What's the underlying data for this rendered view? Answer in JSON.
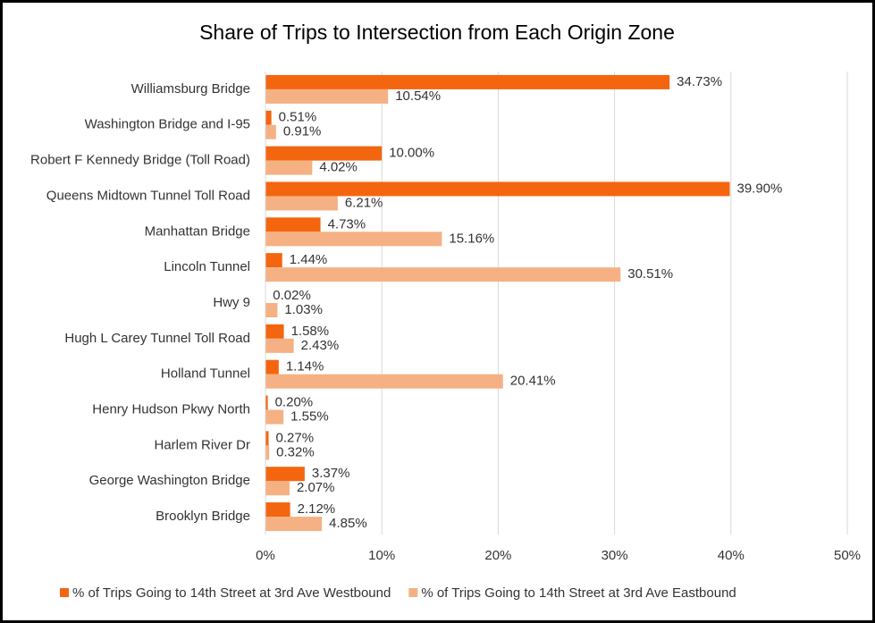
{
  "chart_data": {
    "type": "bar",
    "orientation": "horizontal",
    "title": "Share of Trips to Intersection from Each Origin Zone",
    "categories": [
      "Williamsburg Bridge",
      "Washington Bridge and I-95",
      "Robert F Kennedy Bridge (Toll Road)",
      "Queens Midtown Tunnel Toll Road",
      "Manhattan Bridge",
      "Lincoln Tunnel",
      "Hwy 9",
      "Hugh L Carey Tunnel Toll Road",
      "Holland Tunnel",
      "Henry Hudson Pkwy North",
      "Harlem River Dr",
      "George Washington Bridge",
      "Brooklyn Bridge"
    ],
    "series": [
      {
        "name": "% of Trips Going to 14th Street at 3rd Ave Westbound",
        "color": "#f4650f",
        "values": [
          34.73,
          0.51,
          10.0,
          39.9,
          4.73,
          1.44,
          0.02,
          1.58,
          1.14,
          0.2,
          0.27,
          3.37,
          2.12
        ],
        "value_labels": [
          "34.73%",
          "0.51%",
          "10.00%",
          "39.90%",
          "4.73%",
          "1.44%",
          "0.02%",
          "1.58%",
          "1.14%",
          "0.20%",
          "0.27%",
          "3.37%",
          "2.12%"
        ]
      },
      {
        "name": "% of Trips Going to 14th Street at 3rd Ave Eastbound",
        "color": "#f5b183",
        "values": [
          10.54,
          0.91,
          4.02,
          6.21,
          15.16,
          30.51,
          1.03,
          2.43,
          20.41,
          1.55,
          0.32,
          2.07,
          4.85
        ],
        "value_labels": [
          "10.54%",
          "0.91%",
          "4.02%",
          "6.21%",
          "15.16%",
          "30.51%",
          "1.03%",
          "2.43%",
          "20.41%",
          "1.55%",
          "0.32%",
          "2.07%",
          "4.85%"
        ]
      }
    ],
    "xlim": [
      0,
      50
    ],
    "xticks": [
      {
        "value": 0,
        "label": "0%"
      },
      {
        "value": 10,
        "label": "10%"
      },
      {
        "value": 20,
        "label": "20%"
      },
      {
        "value": 30,
        "label": "30%"
      },
      {
        "value": 40,
        "label": "40%"
      },
      {
        "value": 50,
        "label": "50%"
      }
    ],
    "grid": true,
    "legend": "bottom"
  }
}
